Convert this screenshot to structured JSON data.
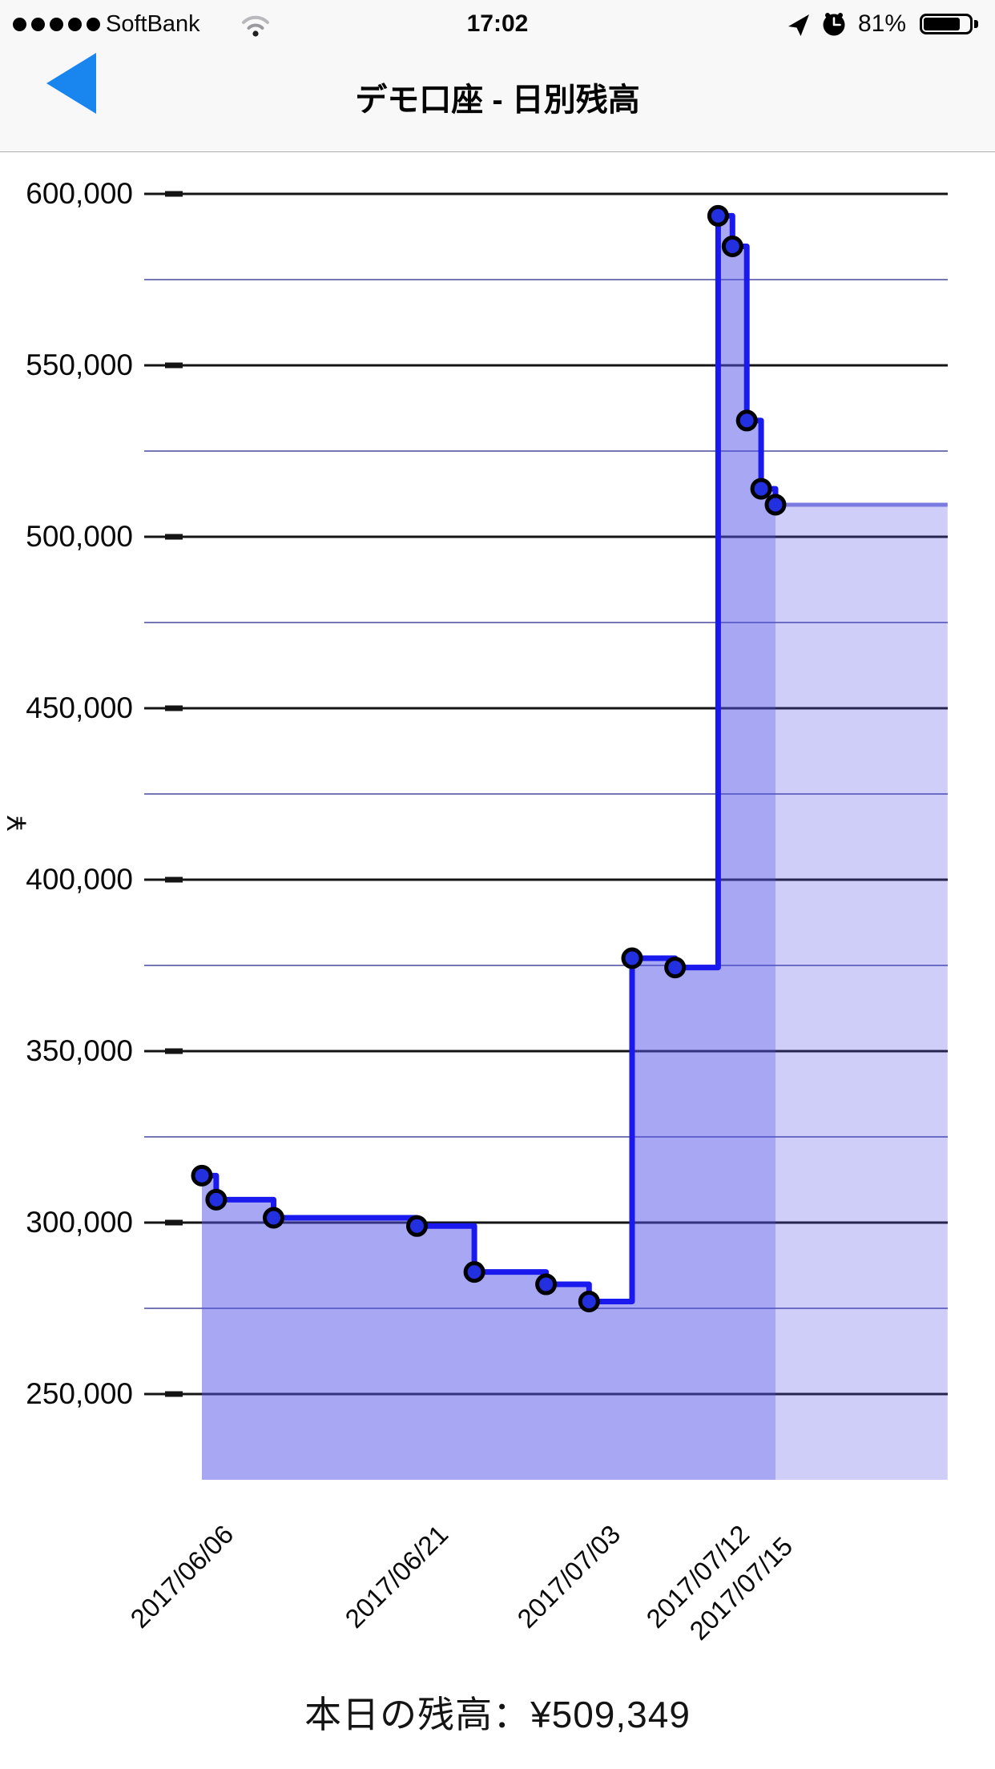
{
  "status_bar": {
    "signal_dots": 5,
    "carrier": "SoftBank",
    "time": "17:02",
    "battery_percent": "81%",
    "icons": [
      "signal-dots",
      "wifi-icon",
      "location-arrow-icon",
      "alarm-clock-icon",
      "battery-icon"
    ]
  },
  "nav": {
    "title": "デモ口座 - 日別残高",
    "back_button": "back"
  },
  "footer": {
    "text": "本日の残高：¥509,349",
    "today_balance": 509349
  },
  "colors": {
    "line": "#1a1aee",
    "marker_fill": "#2330e0",
    "marker_stroke": "#000000",
    "area_fill": "rgba(80,80,232,0.50)",
    "projection_line": "#7a7ae0",
    "projection_fill": "rgba(80,80,232,0.28)",
    "grid_major": "#141414",
    "grid_minor": "#4a4aa0",
    "nav_accent": "#1986f0",
    "chrome_bg": "#f8f8f8"
  },
  "chart_data": {
    "type": "area",
    "step_mode": "step-after",
    "title": "",
    "ylabel": "¥",
    "xlabel": "",
    "grid": true,
    "legend": false,
    "ylim": [
      225000,
      610000
    ],
    "y_tick_values": [
      600000,
      550000,
      500000,
      450000,
      400000,
      350000,
      300000,
      250000
    ],
    "y_tick_labels": [
      "600,000",
      "550,000",
      "500,000",
      "450,000",
      "400,000",
      "350,000",
      "300,000",
      "250,000"
    ],
    "y_minor_gridline_values": [
      575000,
      525000,
      475000,
      425000,
      375000,
      325000,
      275000
    ],
    "x_tick_labels": [
      "2017/06/06",
      "2017/06/21",
      "2017/07/03",
      "2017/07/12",
      "2017/07/15"
    ],
    "x_tick_days": [
      0,
      15,
      27,
      36,
      39
    ],
    "points": [
      {
        "day": 0,
        "date": "2017/06/06",
        "value": 313700
      },
      {
        "day": 1,
        "date": "2017/06/07",
        "value": 306700
      },
      {
        "day": 5,
        "date": "2017/06/11",
        "value": 301400
      },
      {
        "day": 15,
        "date": "2017/06/21",
        "value": 299000
      },
      {
        "day": 19,
        "date": "2017/06/25",
        "value": 285600
      },
      {
        "day": 24,
        "date": "2017/06/30",
        "value": 282000
      },
      {
        "day": 27,
        "date": "2017/07/03",
        "value": 277000
      },
      {
        "day": 30,
        "date": "2017/07/06",
        "value": 377100
      },
      {
        "day": 33,
        "date": "2017/07/09",
        "value": 374400
      },
      {
        "day": 36,
        "date": "2017/07/12",
        "value": 593600
      },
      {
        "day": 37,
        "date": "2017/07/13",
        "value": 584700
      },
      {
        "day": 38,
        "date": "2017/07/14",
        "value": 533900
      },
      {
        "day": 39,
        "date": "2017/07/15",
        "value": 514000
      },
      {
        "day": 40,
        "date": "2017/07/16",
        "value": 509349
      }
    ],
    "projection": {
      "value": 509349,
      "from_day": 40,
      "to_day": 52
    }
  }
}
